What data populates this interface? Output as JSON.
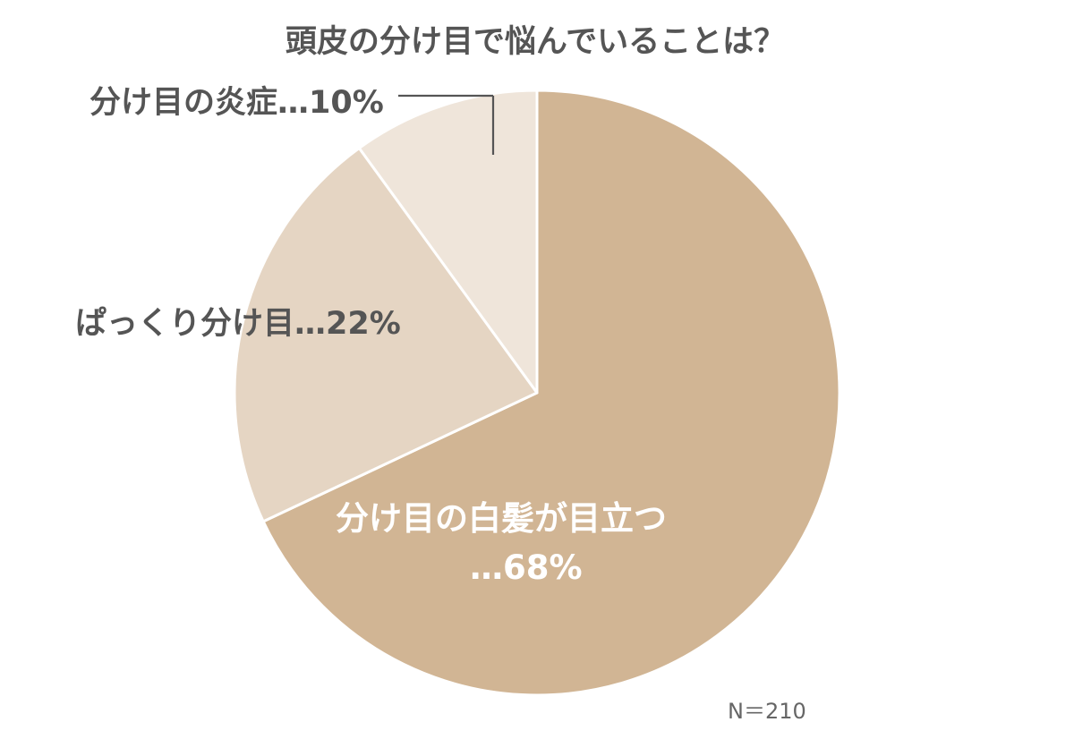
{
  "chart_data": {
    "type": "pie",
    "title": "頭皮の分け目で悩んでいることは？",
    "note": "N＝210",
    "slices": [
      {
        "line1": "分け目の白髪が目立つ",
        "line2": "…68%",
        "value": 68,
        "color": "#d1b594"
      },
      {
        "line1": "ぱっくり分け目…22%",
        "value": 22,
        "color": "#e5d5c3"
      },
      {
        "line1": "分け目の炎症…10%",
        "value": 10,
        "color": "#efe5da"
      }
    ],
    "colors": {
      "text_dark": "#555555",
      "text_light": "#ffffff",
      "border": "#ffffff",
      "leader": "#555555"
    }
  }
}
